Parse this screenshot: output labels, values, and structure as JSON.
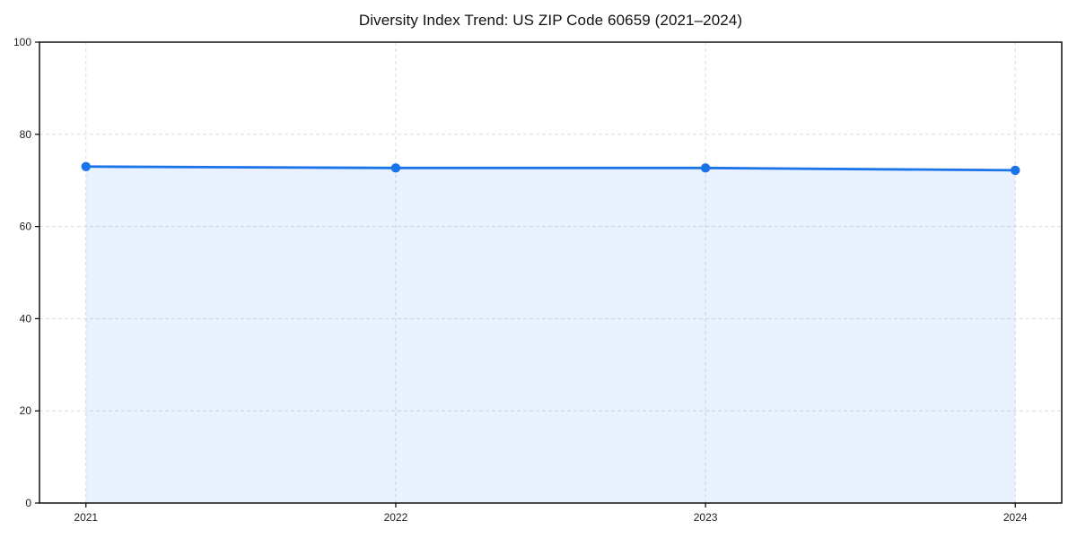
{
  "chart_data": {
    "type": "area",
    "title": "Diversity Index Trend: US ZIP Code 60659 (2021–2024)",
    "x": [
      2021,
      2022,
      2023,
      2024
    ],
    "x_tick_labels": [
      "2021",
      "2022",
      "2023",
      "2024"
    ],
    "series": [
      {
        "name": "Diversity Index",
        "values": [
          73.0,
          72.7,
          72.7,
          72.2
        ]
      }
    ],
    "xlabel": "",
    "ylabel": "",
    "ylim": [
      0,
      100
    ],
    "yticks": [
      0,
      20,
      40,
      60,
      80,
      100
    ],
    "x_margin_years": 0.15,
    "grid": true,
    "grid_style": "dashed",
    "legend_position": "none",
    "colors": {
      "line": "#1a73e8",
      "marker": "#1a73e8",
      "fill": "#1a73e8",
      "fill_opacity": 0.1,
      "grid": "#dcdcdc",
      "spine": "#000000",
      "tick_label": "#1f1f1f",
      "title": "#111111",
      "background": "#ffffff"
    }
  }
}
